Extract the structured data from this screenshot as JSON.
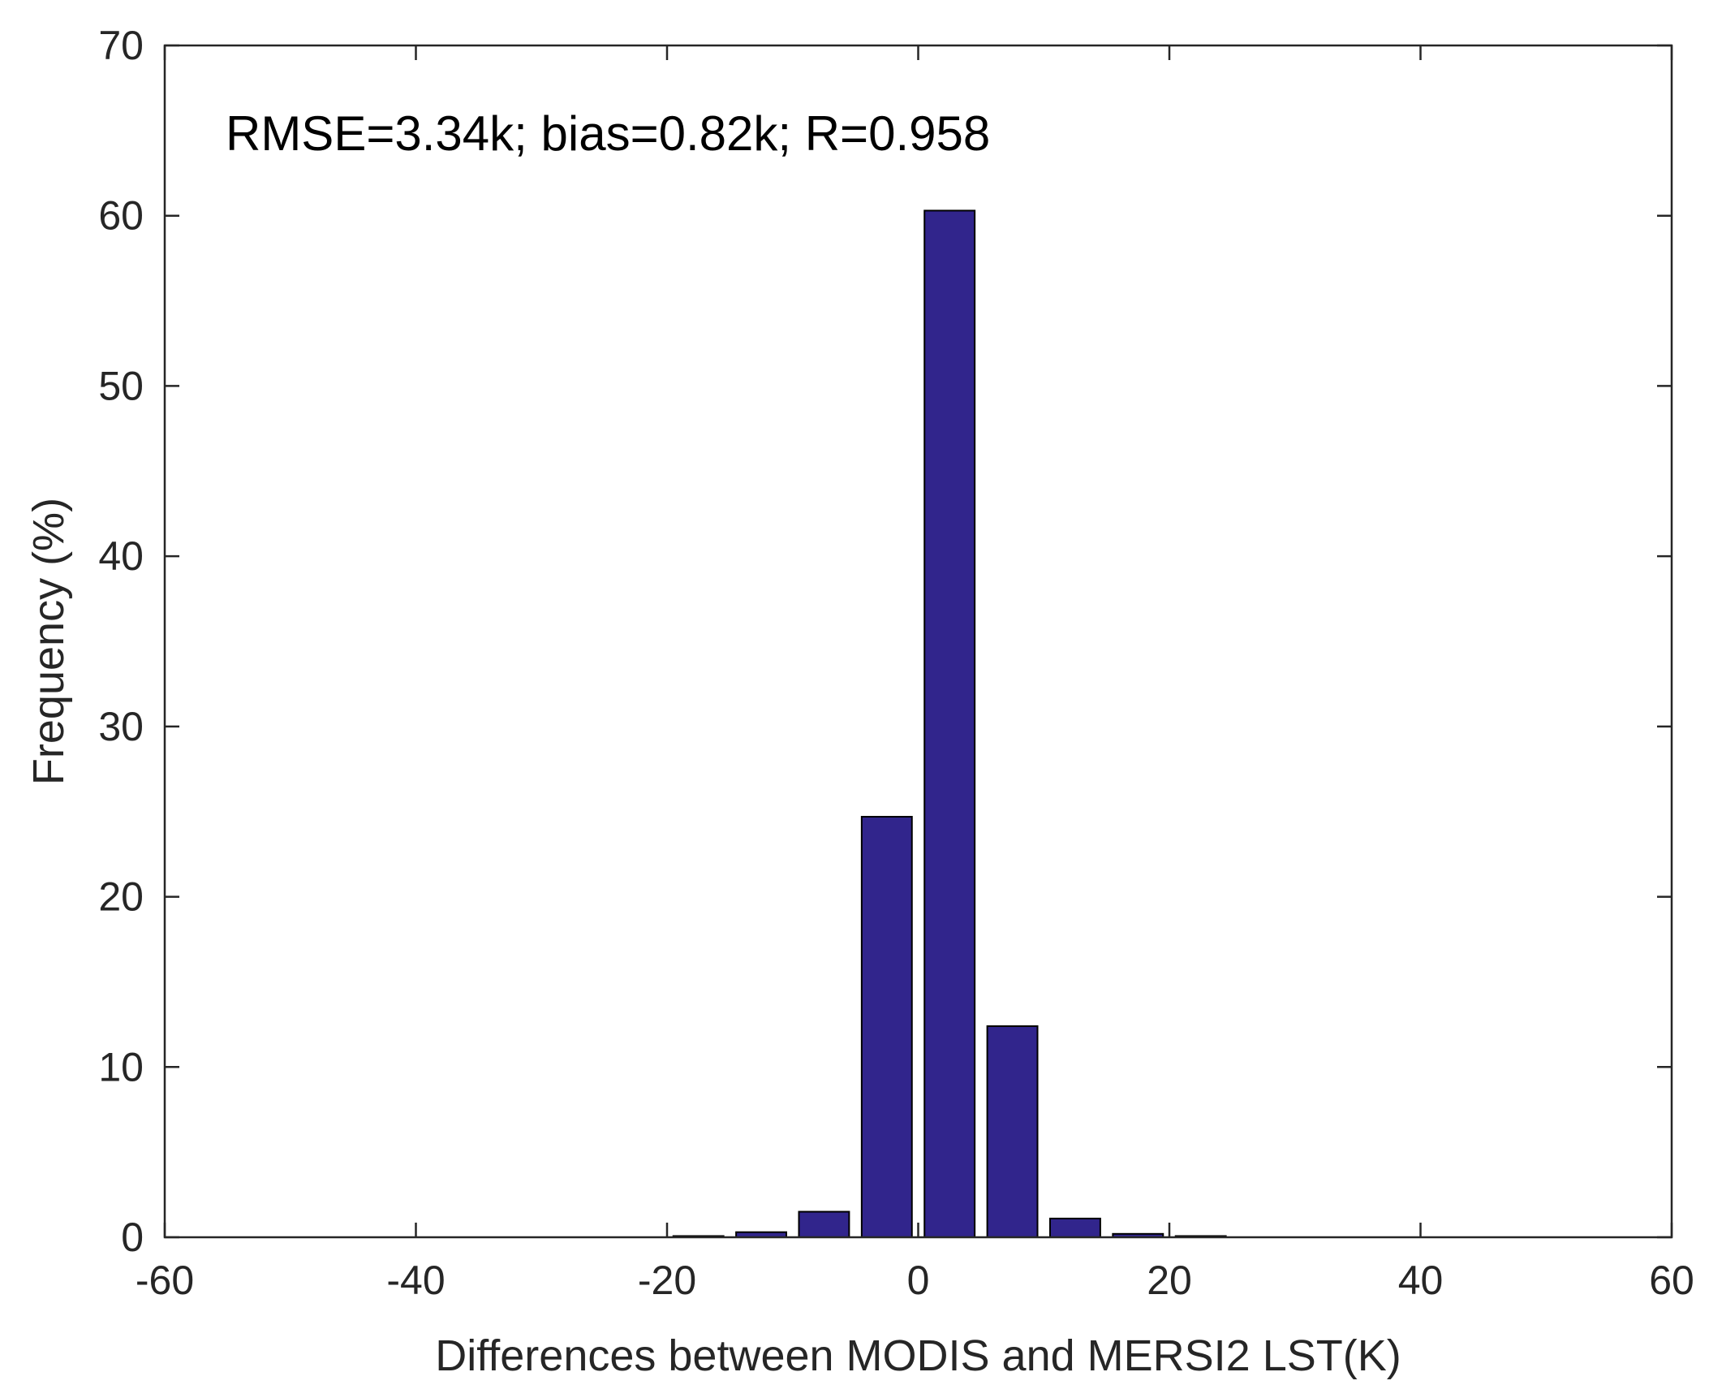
{
  "chart_data": {
    "type": "bar",
    "xlabel": "Differences between MODIS and MERSI2 LST(K)",
    "ylabel": "Frequency (%)",
    "annotation": "RMSE=3.34k; bias=0.82k; R=0.958",
    "xlim": [
      -60,
      60
    ],
    "ylim": [
      0,
      70
    ],
    "x_ticks": [
      -60,
      -40,
      -20,
      0,
      20,
      40,
      60
    ],
    "y_ticks": [
      0,
      10,
      20,
      30,
      40,
      50,
      60,
      70
    ],
    "x_tick_labels": [
      "-60",
      "-40",
      "-20",
      "0",
      "20",
      "40",
      "60"
    ],
    "y_tick_labels": [
      "0",
      "10",
      "20",
      "30",
      "40",
      "50",
      "60",
      "70"
    ],
    "bin_width": 5,
    "bin_centers": [
      -17.5,
      -12.5,
      -7.5,
      -2.5,
      2.5,
      7.5,
      12.5,
      17.5,
      22.5
    ],
    "values": [
      0.05,
      0.3,
      1.5,
      24.7,
      60.3,
      12.4,
      1.1,
      0.2,
      0.05
    ],
    "bar_color": "#31258c",
    "grid": false,
    "box": true
  }
}
